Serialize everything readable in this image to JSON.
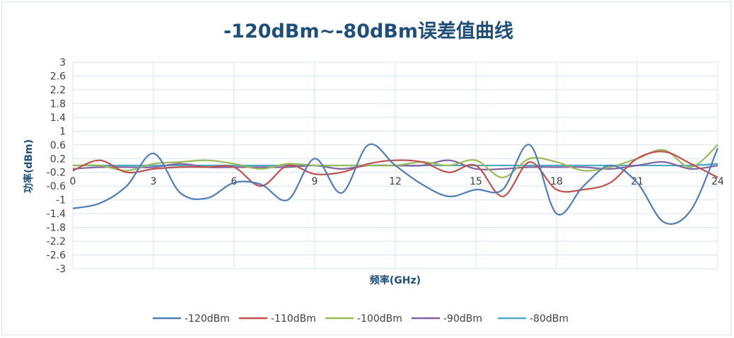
{
  "chart_data": {
    "type": "line",
    "title": "-120dBm~-80dBm误差值曲线",
    "xlabel": "频率(GHz)",
    "ylabel": "功率(dBm)",
    "xlim": [
      0,
      24
    ],
    "ylim": [
      -3,
      3
    ],
    "xticks": [
      "0",
      "3",
      "6",
      "9",
      "12",
      "15",
      "18",
      "21",
      "24"
    ],
    "yticks": [
      "3",
      "2.6",
      "2.2",
      "1.8",
      "1.4",
      "1",
      "0.6",
      "0.2",
      "-0.2",
      "-0.6",
      "-1",
      "-1.4",
      "-1.8",
      "-2.2",
      "-2.6",
      "-3"
    ],
    "grid": true,
    "legend_position": "bottom",
    "x": [
      0,
      1,
      2,
      3,
      4,
      5,
      6,
      7,
      8,
      9,
      10,
      11,
      12,
      13,
      14,
      15,
      16,
      17,
      18,
      19,
      20,
      21,
      22,
      23,
      24
    ],
    "series": [
      {
        "name": "-120dBm",
        "color": "#4f7cb8",
        "values": [
          -1.25,
          -1.1,
          -0.6,
          0.35,
          -0.8,
          -0.95,
          -0.5,
          -0.55,
          -1.0,
          0.2,
          -0.8,
          0.6,
          0.0,
          -0.55,
          -0.9,
          -0.7,
          -0.7,
          0.6,
          -1.4,
          -0.6,
          0.0,
          -0.5,
          -1.65,
          -1.3,
          0.5
        ]
      },
      {
        "name": "-110dBm",
        "color": "#c0504d",
        "values": [
          -0.15,
          0.15,
          -0.2,
          -0.1,
          -0.05,
          -0.05,
          -0.05,
          -0.6,
          0.0,
          -0.25,
          -0.2,
          0.05,
          0.15,
          0.1,
          -0.2,
          0.0,
          -0.9,
          0.1,
          -0.7,
          -0.7,
          -0.5,
          0.2,
          0.4,
          0.05,
          -0.35
        ]
      },
      {
        "name": "-100dBm",
        "color": "#9bbb59",
        "values": [
          0.0,
          0.0,
          -0.15,
          0.05,
          0.1,
          0.15,
          0.05,
          -0.1,
          0.05,
          0.0,
          0.0,
          0.0,
          0.0,
          0.1,
          0.0,
          0.15,
          -0.35,
          0.2,
          0.1,
          -0.15,
          -0.05,
          0.2,
          0.45,
          -0.05,
          0.6
        ]
      },
      {
        "name": "-90dBm",
        "color": "#8064a2",
        "values": [
          -0.1,
          -0.05,
          -0.05,
          -0.05,
          0.05,
          -0.05,
          -0.05,
          -0.05,
          -0.05,
          0.0,
          -0.1,
          0.0,
          0.0,
          0.0,
          0.15,
          -0.1,
          -0.1,
          -0.05,
          -0.05,
          -0.05,
          -0.1,
          0.0,
          0.1,
          -0.1,
          0.0
        ]
      },
      {
        "name": "-80dBm",
        "color": "#4bacc6",
        "values": [
          0.0,
          0.0,
          0.0,
          0.0,
          0.0,
          0.0,
          0.0,
          0.0,
          0.0,
          0.0,
          0.0,
          0.0,
          0.0,
          0.0,
          0.0,
          0.0,
          0.0,
          0.0,
          0.0,
          0.0,
          0.0,
          0.0,
          0.0,
          0.0,
          0.05
        ]
      }
    ]
  }
}
